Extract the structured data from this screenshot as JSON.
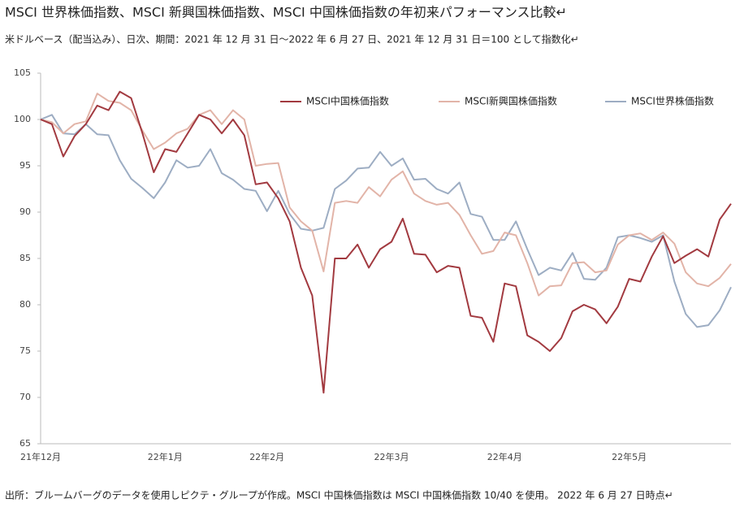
{
  "chart_data": {
    "type": "line",
    "title": "MSCI 世界株価指数、MSCI 新興国株価指数、MSCI 中国株価指数の年初来パフォーマンス比較↵",
    "subtitle": "米ドルベース（配当込み）、日次、期間：2021 年 12 月 31 日～2022 年 6 月 27 日、2021 年 12 月 31 日＝100 として指数化↵",
    "note": "出所：ブルームバーグのデータを使用しピクテ・グループが作成。MSCI 中国株価指数は MSCI 中国株価指数 10/40 を使用。 2022 年 6 月 27 日時点↵",
    "categories": [
      "21年12月",
      null,
      null,
      null,
      null,
      null,
      null,
      null,
      null,
      null,
      null,
      "22年1月",
      null,
      null,
      null,
      null,
      null,
      null,
      null,
      null,
      "22年2月",
      null,
      null,
      null,
      null,
      null,
      null,
      null,
      null,
      null,
      null,
      "22年3月",
      null,
      null,
      null,
      null,
      null,
      null,
      null,
      null,
      null,
      "22年4月",
      null,
      null,
      null,
      null,
      null,
      null,
      null,
      null,
      null,
      null,
      "22年5月",
      null,
      null,
      null,
      null,
      null,
      null,
      null,
      null,
      null
    ],
    "ylim": [
      65,
      105
    ],
    "yticks": [
      65,
      70,
      75,
      80,
      85,
      90,
      95,
      100,
      105
    ],
    "grid": false,
    "legend": "top-right",
    "series": [
      {
        "name": "MSCI中国株価指数",
        "color": "#a23a40",
        "values": [
          100,
          99.5,
          96,
          98.2,
          99.5,
          101.5,
          101,
          103,
          102.3,
          98.5,
          94.3,
          96.8,
          96.5,
          98.5,
          100.5,
          100,
          98.5,
          100,
          98.3,
          93,
          93.2,
          91.5,
          89,
          84,
          81,
          70.5,
          85,
          85,
          86.5,
          84,
          86,
          86.8,
          89.3,
          85.5,
          85.4,
          83.5,
          84.2,
          84,
          78.8,
          78.6,
          76,
          82.3,
          82,
          76.7,
          76,
          75,
          76.4,
          79.3,
          80,
          79.5,
          78,
          79.8,
          82.8,
          82.5,
          85.2,
          87.4,
          84.5,
          85.3,
          86,
          85.2,
          89.2,
          90.9
        ]
      },
      {
        "name": "MSCI新興国株価指数",
        "color": "#e2b4a8",
        "values": [
          100,
          99.7,
          98.5,
          99.5,
          99.8,
          102.8,
          102,
          101.8,
          101,
          98.8,
          96.8,
          97.5,
          98.5,
          99,
          100.5,
          101,
          99.5,
          101,
          100,
          95,
          95.2,
          95.3,
          90.5,
          89,
          88,
          83.6,
          91,
          91.2,
          91,
          92.7,
          91.7,
          93.5,
          94.4,
          92,
          91.2,
          90.8,
          91,
          89.7,
          87.5,
          85.5,
          85.8,
          87.8,
          87.5,
          84.5,
          81,
          82,
          82.1,
          84.5,
          84.6,
          83.5,
          83.7,
          86.5,
          87.5,
          87.7,
          87,
          87.8,
          86.6,
          83.5,
          82.3,
          82,
          82.9,
          84.4
        ]
      },
      {
        "name": "MSCI世界株価指数",
        "color": "#9dadc3",
        "values": [
          100,
          100.5,
          98.5,
          98.4,
          99.5,
          98.4,
          98.3,
          95.6,
          93.6,
          92.6,
          91.5,
          93.2,
          95.6,
          94.8,
          95,
          96.8,
          94.2,
          93.5,
          92.5,
          92.3,
          90.1,
          92.3,
          89.8,
          88.2,
          88,
          88.3,
          92.5,
          93.4,
          94.7,
          94.8,
          96.5,
          95,
          95.8,
          93.5,
          93.6,
          92.5,
          92,
          93.2,
          89.8,
          89.5,
          87,
          87,
          89,
          86,
          83.2,
          84,
          83.7,
          85.6,
          82.8,
          82.7,
          84,
          87.3,
          87.5,
          87.2,
          86.8,
          87.5,
          82.5,
          79,
          77.6,
          77.8,
          79.4,
          81.9
        ]
      }
    ]
  }
}
